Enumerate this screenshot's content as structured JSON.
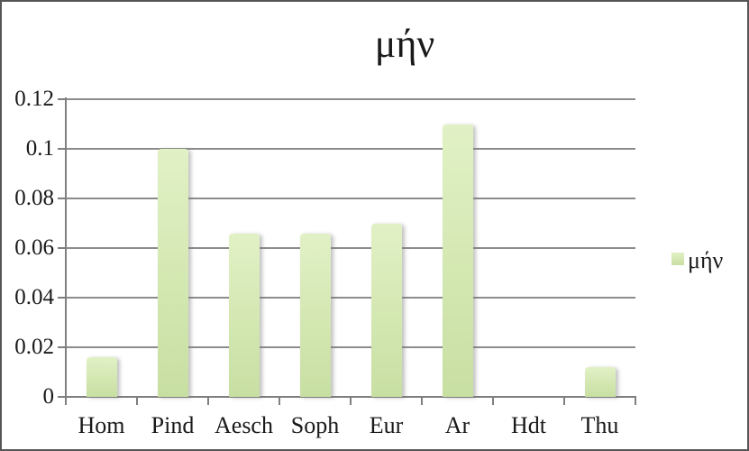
{
  "window": {
    "background": "#ffffff",
    "border_color": "#565656"
  },
  "chart_data": {
    "type": "bar",
    "title": "μήν",
    "categories": [
      "Hom",
      "Pind",
      "Aesch",
      "Soph",
      "Eur",
      "Ar",
      "Hdt",
      "Thu"
    ],
    "series": [
      {
        "name": "μήν",
        "values": [
          0.016,
          0.1,
          0.066,
          0.066,
          0.07,
          0.11,
          0,
          0.012
        ]
      }
    ],
    "xlabel": "",
    "ylabel": "",
    "ylim": [
      0,
      0.12
    ],
    "yticks": [
      {
        "value": 0,
        "label": "0"
      },
      {
        "value": 0.02,
        "label": "0.02"
      },
      {
        "value": 0.04,
        "label": "0.04"
      },
      {
        "value": 0.06,
        "label": "0.06"
      },
      {
        "value": 0.08,
        "label": "0.08"
      },
      {
        "value": 0.1,
        "label": "0.1"
      },
      {
        "value": 0.12,
        "label": "0.12"
      }
    ],
    "grid": true,
    "legend": {
      "position": "right",
      "entries": [
        {
          "label": "μήν"
        }
      ]
    },
    "style": {
      "bar_fill_top": "#e1f1c5",
      "bar_fill_bottom": "#c8dfa2",
      "gridline_color": "#8c8c8c",
      "axis_color": "#7f7f7f",
      "text_color": "#1a1a1a"
    }
  }
}
